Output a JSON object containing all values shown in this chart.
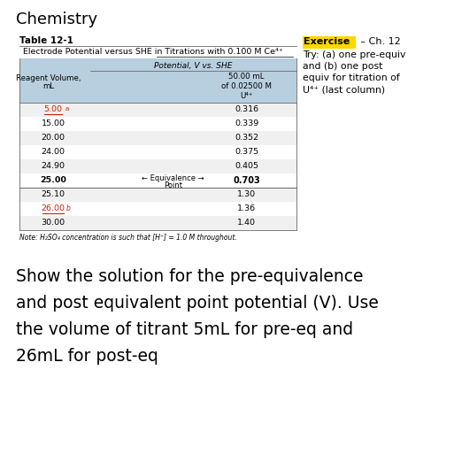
{
  "title": "Chemistry",
  "table_title": "Table 12-1",
  "table_header": "Electrode Potential versus SHE in Titrations with 0.100 M Ce⁴⁺",
  "table_header_underline_word": "0.100 M Ce⁴⁺",
  "col_header_main": "Potential, V vs. SHE",
  "col_header_sub": "50.00 mL\nof 0.02500 M\nU⁴⁺",
  "row_header_line1": "Reagent Volume,",
  "row_header_line2": "mL",
  "pre_eq_rows": [
    [
      "5.00",
      "0.316",
      true
    ],
    [
      "15.00",
      "0.339",
      false
    ],
    [
      "20.00",
      "0.352",
      false
    ],
    [
      "24.00",
      "0.375",
      false
    ],
    [
      "24.90",
      "0.405",
      false
    ],
    [
      "25.00",
      "0.703",
      false
    ]
  ],
  "equivalence_label_line1": "← Equivalence →",
  "equivalence_label_line2": "Point",
  "post_eq_rows": [
    [
      "25.10",
      "1.30",
      false
    ],
    [
      "26.00",
      "1.36",
      true
    ],
    [
      "30.00",
      "1.40",
      false
    ]
  ],
  "note": "Note: H₂SO₄ concentration is such that [H⁺] = 1.0 M throughout.",
  "exercise_label": "Exercise",
  "exercise_suffix": " – Ch. 12",
  "exercise_lines": [
    "Try: (a) one pre-equiv",
    "and (b) one post",
    "equiv for titration of",
    "U⁴⁺ (last column)"
  ],
  "bottom_text_lines": [
    "Show the solution for the pre-equivalence",
    "and post equivalent point potential (V). Use",
    "the volume of titrant 5mL for pre-eq and",
    "26mL for post-eq"
  ],
  "exercise_bg": "#FFD700",
  "page_bg": "#FFFFFF",
  "table_header_bg": "#B8CFE0",
  "table_border": "#888888",
  "red_color": "#CC2200",
  "highlight_5_color": "#CC2200",
  "highlight_26_color": "#CC2200"
}
